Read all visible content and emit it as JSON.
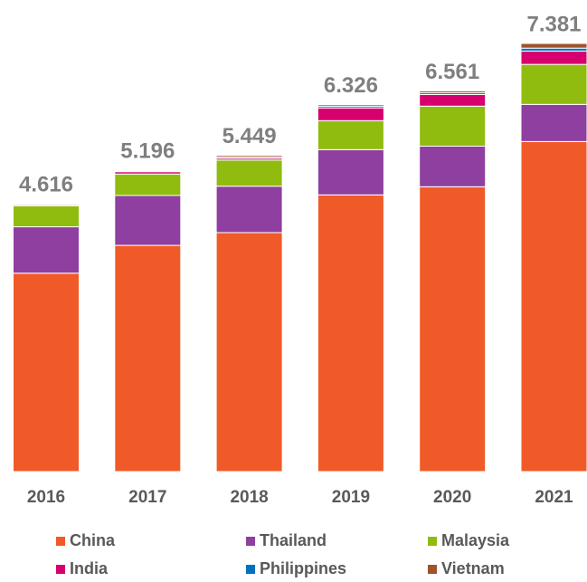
{
  "chart_data": {
    "type": "stacked_bar",
    "categories": [
      "2016",
      "2017",
      "2018",
      "2019",
      "2020",
      "2021"
    ],
    "totals": [
      4.616,
      5.196,
      5.449,
      6.326,
      6.561,
      7.381
    ],
    "series": [
      {
        "name": "China",
        "color": "#f05a28",
        "values": [
          3.42,
          3.9,
          4.12,
          4.77,
          4.91,
          5.69
        ]
      },
      {
        "name": "Thailand",
        "color": "#8e3fa0",
        "values": [
          0.8,
          0.86,
          0.8,
          0.78,
          0.7,
          0.64
        ]
      },
      {
        "name": "Malaysia",
        "color": "#8fbc0e",
        "values": [
          0.36,
          0.37,
          0.45,
          0.5,
          0.69,
          0.69
        ]
      },
      {
        "name": "India",
        "color": "#d6006e",
        "values": [
          0.02,
          0.04,
          0.03,
          0.22,
          0.2,
          0.23
        ]
      },
      {
        "name": "Philippines",
        "color": "#0070c0",
        "values": [
          0.006,
          0.01,
          0.02,
          0.03,
          0.03,
          0.05
        ]
      },
      {
        "name": "Vietnam",
        "color": "#a0522d",
        "values": [
          0.01,
          0.016,
          0.029,
          0.026,
          0.031,
          0.081
        ]
      }
    ],
    "legend": "bottom"
  }
}
